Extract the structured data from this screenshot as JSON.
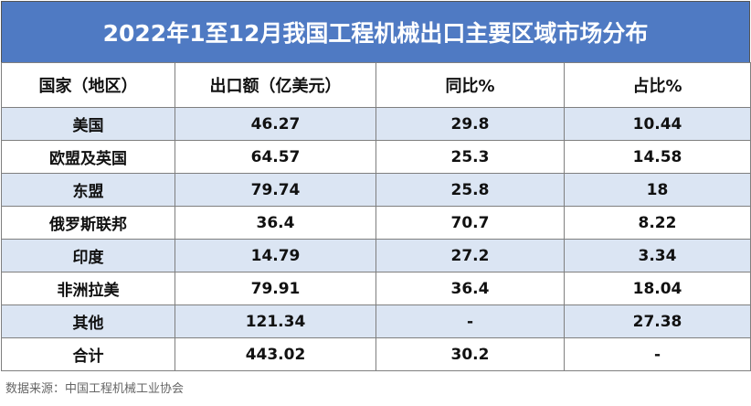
{
  "title": "2022年1至12月我国工程机械出口主要区域市场分布",
  "table": {
    "headers": [
      "国家（地区）",
      "出口额（亿美元）",
      "同比%",
      "占比%"
    ],
    "rows": [
      [
        "美国",
        "46.27",
        "29.8",
        "10.44"
      ],
      [
        "欧盟及英国",
        "64.57",
        "25.3",
        "14.58"
      ],
      [
        "东盟",
        "79.74",
        "25.8",
        "18"
      ],
      [
        "俄罗斯联邦",
        "36.4",
        "70.7",
        "8.22"
      ],
      [
        "印度",
        "14.79",
        "27.2",
        "3.34"
      ],
      [
        "非洲拉美",
        "79.91",
        "36.4",
        "18.04"
      ],
      [
        "其他",
        "121.34",
        "-",
        "27.38"
      ],
      [
        "合计",
        "443.02",
        "30.2",
        "-"
      ]
    ]
  },
  "source": "数据来源：中国工程机械工业协会"
}
